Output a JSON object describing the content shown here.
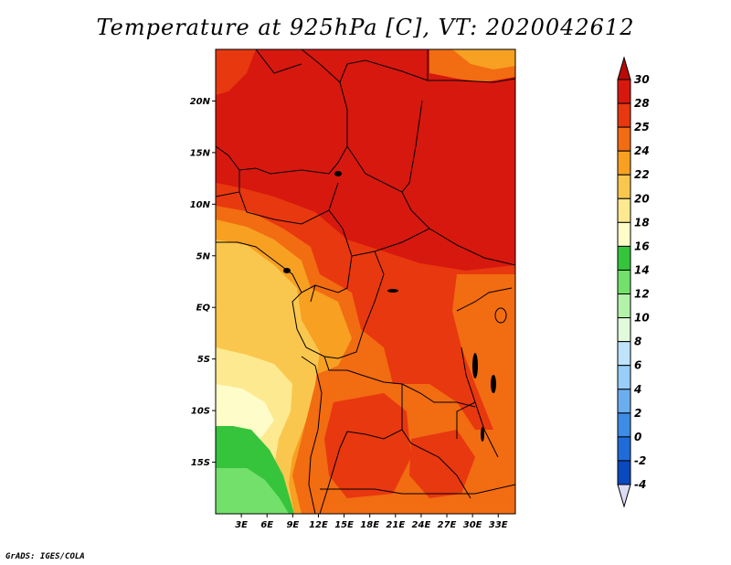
{
  "title": "Temperature at 925hPa [C], VT: 2020042612",
  "credit": "GrADS: IGES/COLA",
  "map": {
    "lat_labels": [
      {
        "label": "20N",
        "lat": 20
      },
      {
        "label": "15N",
        "lat": 15
      },
      {
        "label": "10N",
        "lat": 10
      },
      {
        "label": "5N",
        "lat": 5
      },
      {
        "label": "EQ",
        "lat": 0
      },
      {
        "label": "5S",
        "lat": -5
      },
      {
        "label": "10S",
        "lat": -10
      },
      {
        "label": "15S",
        "lat": -15
      }
    ],
    "lon_labels": [
      {
        "label": "3E",
        "lon": 3
      },
      {
        "label": "6E",
        "lon": 6
      },
      {
        "label": "9E",
        "lon": 9
      },
      {
        "label": "12E",
        "lon": 12
      },
      {
        "label": "15E",
        "lon": 15
      },
      {
        "label": "18E",
        "lon": 18
      },
      {
        "label": "21E",
        "lon": 21
      },
      {
        "label": "24E",
        "lon": 24
      },
      {
        "label": "27E",
        "lon": 27
      },
      {
        "label": "30E",
        "lon": 30
      },
      {
        "label": "33E",
        "lon": 33
      }
    ],
    "lon_range": [
      0,
      35
    ],
    "lat_range": [
      -20,
      25
    ]
  },
  "colorbar": {
    "levels": [
      {
        "label": "30",
        "color": "#d7180e"
      },
      {
        "label": "28",
        "color": "#e8380f"
      },
      {
        "label": "25",
        "color": "#f26c12"
      },
      {
        "label": "24",
        "color": "#f7a021"
      },
      {
        "label": "22",
        "color": "#fac74e"
      },
      {
        "label": "20",
        "color": "#fde98f"
      },
      {
        "label": "18",
        "color": "#fefcc9"
      },
      {
        "label": "16",
        "color": "#35c43b"
      },
      {
        "label": "14",
        "color": "#72e06a"
      },
      {
        "label": "12",
        "color": "#b3f2a8"
      },
      {
        "label": "10",
        "color": "#e1fadb"
      },
      {
        "label": "8",
        "color": "#bfe3fb"
      },
      {
        "label": "6",
        "color": "#98cef7"
      },
      {
        "label": "4",
        "color": "#6aaef0"
      },
      {
        "label": "2",
        "color": "#3d8ce6"
      },
      {
        "label": "0",
        "color": "#1f6bd8"
      },
      {
        "label": "-2",
        "color": "#0a48c0"
      },
      {
        "label": "-4",
        "color": "#061e82"
      }
    ],
    "top_color": "#b90a06",
    "bottom_color": "#dcdcf5"
  }
}
